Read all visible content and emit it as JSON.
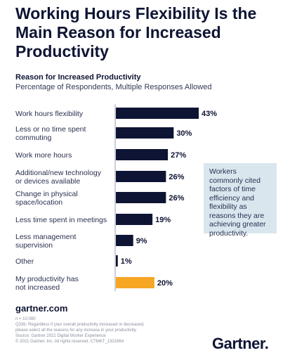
{
  "header": {
    "title": "Working Hours Flexibility Is the Main Reason for Increased Productivity",
    "subtitle": "Reason for Increased Productivity",
    "subnote": "Percentage of Respondents, Multiple Responses Allowed"
  },
  "callout": "Workers commonly cited factors of time efficiency and flexibility as reasons they are achieving greater productivity.",
  "footer": {
    "site": "gartner.com",
    "notes": [
      "n = 10,080",
      "Q33b: Regardless if your overall productivity increased or decreased,",
      "please select all the reasons for any increase in your productivity.",
      "Source: Gartner 2021 Digital Worker Experience",
      "© 2021 Gartner, Inc. All rights reserved. CTMKT_1331864"
    ],
    "logo": "Gartner."
  },
  "colors": {
    "bar": "#0e1433",
    "highlight": "#f5a623",
    "callout_bg": "#d9e6ee"
  },
  "chart_data": {
    "type": "bar",
    "orientation": "horizontal",
    "title": "Reason for Increased Productivity",
    "categories": [
      [
        "Work hours flexibility"
      ],
      [
        "Less or no time spent",
        "commuting"
      ],
      [
        "Work more hours"
      ],
      [
        "Additional/new technology",
        "or devices available"
      ],
      [
        "Change in physical",
        "space/location"
      ],
      [
        "Less time spent in meetings"
      ],
      [
        "Less management",
        "supervision"
      ],
      [
        "Other"
      ],
      [
        "My productivity has",
        "not increased"
      ]
    ],
    "values": [
      43,
      30,
      27,
      26,
      26,
      19,
      9,
      1,
      20
    ],
    "value_labels": [
      "43%",
      "30%",
      "27%",
      "26%",
      "26%",
      "19%",
      "9%",
      "1%",
      "20%"
    ],
    "highlight_index": 8,
    "unit": "%",
    "xlim": [
      0,
      43
    ]
  }
}
